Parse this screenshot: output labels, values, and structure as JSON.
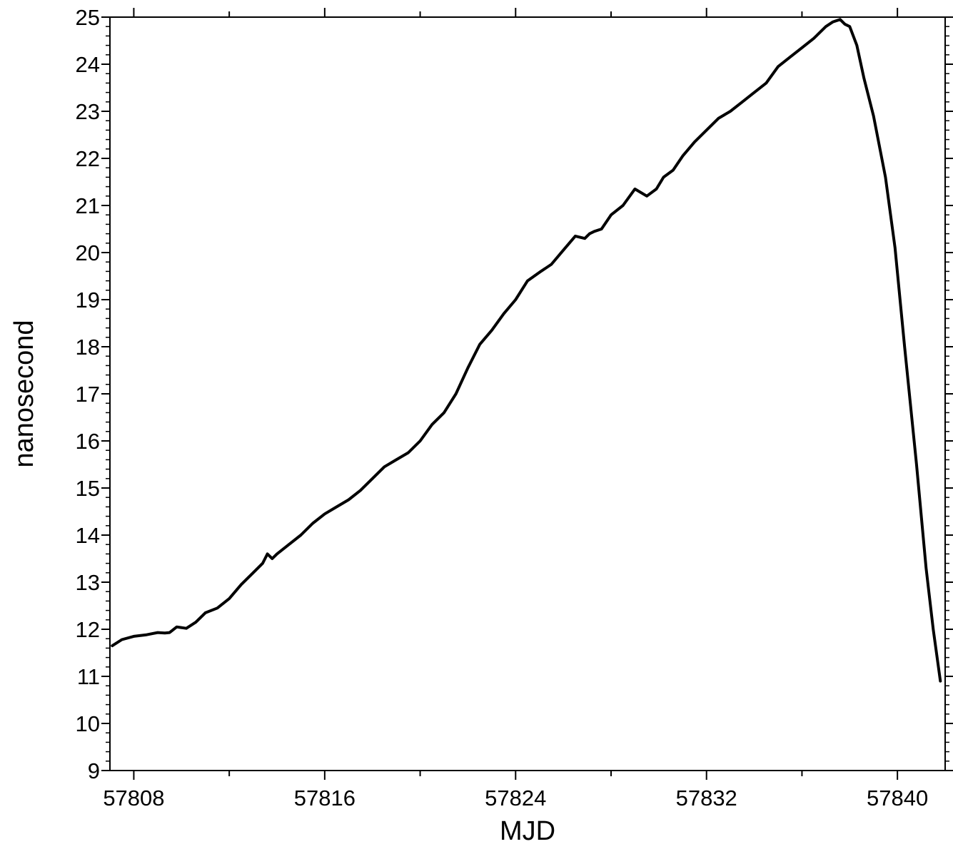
{
  "chart_data": {
    "type": "line",
    "title": "",
    "xlabel": "MJD",
    "ylabel": "nanosecond",
    "xlim": [
      57807,
      57842
    ],
    "ylim": [
      9,
      25
    ],
    "x_ticks": [
      57808,
      57816,
      57824,
      57832,
      57840
    ],
    "y_ticks": [
      9,
      10,
      11,
      12,
      13,
      14,
      15,
      16,
      17,
      18,
      19,
      20,
      21,
      22,
      23,
      24,
      25
    ],
    "grid": false,
    "legend": "none",
    "line_color": "#000000",
    "series": [
      {
        "x": [
          57807.1,
          57807.5,
          57808.0,
          57808.5,
          57809.0,
          57809.3,
          57809.5,
          57809.8,
          57810.2,
          57810.6,
          57811.0,
          57811.5,
          57812.0,
          57812.5,
          57813.0,
          57813.4,
          57813.6,
          57813.8,
          57814.0,
          57814.5,
          57815.0,
          57815.5,
          57816.0,
          57816.5,
          57817.0,
          57817.5,
          57818.0,
          57818.5,
          57819.0,
          57819.5,
          57820.0,
          57820.5,
          57821.0,
          57821.5,
          57822.0,
          57822.5,
          57823.0,
          57823.5,
          57824.0,
          57824.5,
          57825.0,
          57825.5,
          57826.0,
          57826.5,
          57826.9,
          57827.1,
          57827.3,
          57827.6,
          57828.0,
          57828.5,
          57829.0,
          57829.5,
          57829.9,
          57830.2,
          57830.6,
          57831.0,
          57831.5,
          57832.0,
          57832.5,
          57833.0,
          57833.5,
          57834.0,
          57834.5,
          57835.0,
          57835.5,
          57836.0,
          57836.5,
          57837.0,
          57837.3,
          57837.6,
          57837.8,
          57838.0,
          57838.3,
          57838.6,
          57839.0,
          57839.5,
          57839.9,
          57840.3,
          57840.8,
          57841.2,
          57841.5,
          57841.8
        ],
        "y": [
          11.65,
          11.78,
          11.85,
          11.88,
          11.93,
          11.92,
          11.93,
          12.05,
          12.02,
          12.15,
          12.35,
          12.45,
          12.65,
          12.95,
          13.2,
          13.4,
          13.6,
          13.5,
          13.6,
          13.8,
          14.0,
          14.25,
          14.45,
          14.6,
          14.75,
          14.95,
          15.2,
          15.45,
          15.6,
          15.75,
          16.0,
          16.35,
          16.6,
          17.0,
          17.55,
          18.05,
          18.35,
          18.7,
          19.0,
          19.4,
          19.58,
          19.75,
          20.05,
          20.35,
          20.3,
          20.4,
          20.45,
          20.5,
          20.8,
          21.0,
          21.35,
          21.2,
          21.35,
          21.6,
          21.75,
          22.05,
          22.35,
          22.6,
          22.85,
          23.0,
          23.2,
          23.4,
          23.6,
          23.95,
          24.15,
          24.35,
          24.55,
          24.8,
          24.9,
          24.95,
          24.85,
          24.8,
          24.4,
          23.7,
          22.9,
          21.6,
          20.1,
          18.0,
          15.5,
          13.3,
          12.0,
          10.9
        ]
      }
    ]
  }
}
